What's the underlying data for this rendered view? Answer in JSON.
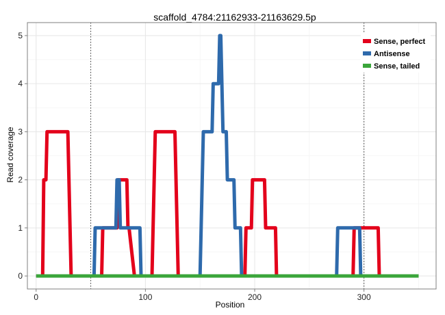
{
  "chart_data": {
    "type": "line",
    "title": "scaffold_4784:21162933-21163629.5p",
    "xlabel": "Position",
    "ylabel": "Read coverage",
    "xlim": [
      -8,
      366
    ],
    "ylim": [
      -0.27,
      5.27
    ],
    "xticks": [
      0,
      100,
      200,
      300
    ],
    "yticks": [
      0,
      1,
      2,
      3,
      4,
      5
    ],
    "x_minor_grid": [
      50,
      150,
      250,
      350
    ],
    "y_minor_grid": [
      0.5,
      1.5,
      2.5,
      3.5,
      4.5
    ],
    "vlines": [
      50,
      300
    ],
    "grid": true,
    "legend_position": "top-right",
    "series": [
      {
        "name": "Sense, perfect",
        "color": "#e3001b",
        "x": [
          0,
          6,
          7,
          9,
          10,
          29,
          30,
          31,
          32,
          33,
          59,
          60,
          61,
          62,
          63,
          74,
          75,
          76,
          77,
          78,
          82,
          83,
          84,
          85,
          90,
          106,
          107,
          108,
          109,
          110,
          127,
          128,
          129,
          130,
          190,
          191,
          192,
          193,
          194,
          196,
          197,
          198,
          199,
          200,
          208,
          209,
          210,
          211,
          212,
          218,
          219,
          220,
          221,
          222,
          290,
          291,
          292,
          293,
          294,
          312,
          313,
          314,
          350
        ],
        "values": [
          0,
          0,
          2,
          2,
          3,
          3,
          2,
          1,
          0,
          0,
          0,
          0,
          1,
          1,
          1,
          1,
          2,
          2,
          2,
          2,
          2,
          2,
          1,
          1,
          0,
          0,
          1,
          2,
          3,
          3,
          3,
          2,
          1,
          0,
          0,
          0,
          1,
          1,
          1,
          1,
          1,
          2,
          2,
          2,
          2,
          2,
          1,
          1,
          1,
          1,
          1,
          0,
          0,
          0,
          0,
          1,
          1,
          1,
          1,
          1,
          1,
          0,
          0
        ]
      },
      {
        "name": "Antisense",
        "color": "#2e6aac",
        "x": [
          0,
          53,
          54,
          55,
          56,
          73,
          74,
          75,
          76,
          77,
          78,
          95,
          96,
          150,
          151,
          152,
          153,
          154,
          160,
          161,
          162,
          163,
          164,
          167,
          168,
          169,
          170,
          171,
          172,
          174,
          175,
          176,
          180,
          181,
          182,
          183,
          184,
          186,
          187,
          188,
          189,
          190,
          275,
          276,
          277,
          278,
          279,
          295,
          296,
          297,
          298,
          299,
          300,
          350
        ],
        "values": [
          0,
          0,
          1,
          1,
          1,
          1,
          2,
          2,
          2,
          1,
          1,
          1,
          0,
          0,
          1,
          2,
          3,
          3,
          3,
          3,
          4,
          4,
          4,
          4,
          5,
          5,
          4,
          3,
          3,
          3,
          2,
          2,
          2,
          2,
          1,
          1,
          1,
          1,
          1,
          0,
          0,
          0,
          0,
          1,
          1,
          1,
          1,
          1,
          1,
          0,
          0,
          0,
          0,
          0
        ]
      },
      {
        "name": "Sense, tailed",
        "color": "#3aa53a",
        "x": [
          0,
          350
        ],
        "values": [
          0,
          0
        ]
      }
    ]
  }
}
